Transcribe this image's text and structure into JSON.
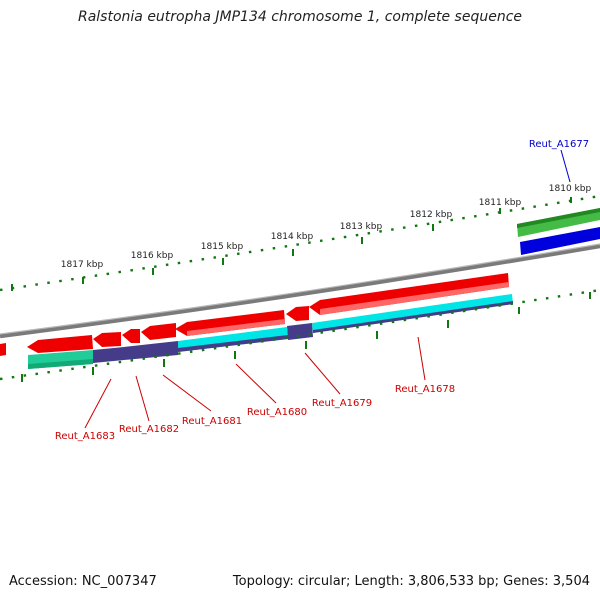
{
  "title": "Ralstonia eutropha JMP134 chromosome 1, complete sequence",
  "footer": {
    "accession": "Accession: NC_007347",
    "meta": "Topology: circular; Length: 3,806,533 bp; Genes: 3,504"
  },
  "scale_labels": [
    "1810 kbp",
    "1811 kbp",
    "1812 kbp",
    "1813 kbp",
    "1814 kbp",
    "1815 kbp",
    "1816 kbp",
    "1817 kbp"
  ],
  "gene_labels": [
    "Reut_A1677",
    "Reut_A1678",
    "Reut_A1679",
    "Reut_A1680",
    "Reut_A1681",
    "Reut_A1682",
    "Reut_A1683"
  ],
  "colors": {
    "gene_red": "#ee0000",
    "gene_red_light": "#ff6666",
    "cds_cyan": "#00e5e5",
    "cds_indigo": "#443c88",
    "cds_teal": "#22cc99",
    "gene_green": "#44bb44",
    "gene_blue": "#0000dd",
    "backbone": "#808080",
    "tick_green": "#117711"
  }
}
